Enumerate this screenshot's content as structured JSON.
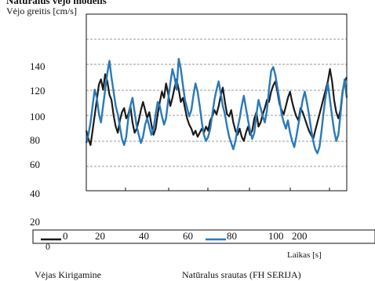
{
  "chart_data": {
    "type": "line",
    "title": "Natūralūs vėjo modelis",
    "ylabel": "Vėjo greitis [cm/s]",
    "xlabel": "Laikas [s]",
    "ylim": [
      20,
      160
    ],
    "y_ticks": [
      20,
      40,
      60,
      80,
      100,
      120,
      140
    ],
    "x_tick_labels": [
      "0",
      "20",
      "40",
      "60",
      "80",
      "100",
      "200"
    ],
    "extra_label": "0",
    "grid": "horizontal-dashed",
    "legend_position": "bottom",
    "legend": [
      "Vėjas Kirigamine",
      "Natūralus srautas (FH SERIJA)"
    ],
    "series": [
      {
        "name": "Vėjas Kirigamine",
        "color": "#1a1a1a",
        "values": [
          80,
          72,
          66,
          80,
          95,
          110,
          125,
          130,
          120,
          135,
          128,
          115,
          110,
          95,
          84,
          78,
          90,
          98,
          102,
          92,
          96,
          104,
          88,
          78,
          82,
          90,
          100,
          108,
          100,
          92,
          98,
          86,
          76,
          82,
          96,
          108,
          118,
          112,
          126,
          116,
          104,
          112,
          122,
          130,
          120,
          108,
          112,
          102,
          92,
          86,
          82,
          76,
          80,
          74,
          78,
          82,
          78,
          84,
          80,
          90,
          94,
          100,
          96,
          104,
          114,
          122,
          108,
          96,
          94,
          100,
          88,
          80,
          76,
          82,
          74,
          70,
          78,
          84,
          76,
          80,
          92,
          98,
          84,
          88,
          96,
          102,
          110,
          108,
          118,
          124,
          128,
          118,
          106,
          100,
          96,
          104,
          112,
          118,
          108,
          100,
          94,
          90,
          102,
          98,
          92,
          86,
          80,
          76,
          72,
          80,
          88,
          96,
          104,
          112,
          120,
          128,
          140,
          128,
          110,
          98,
          92,
          100,
          118,
          128,
          132
        ]
      },
      {
        "name": "Natūralus srautas (FH SERIJA)",
        "color": "#2a7ab8",
        "values": [
          68,
          76,
          88,
          104,
          120,
          112,
          96,
          88,
          104,
          120,
          136,
          148,
          132,
          118,
          104,
          96,
          84,
          72,
          66,
          74,
          92,
          104,
          112,
          98,
          84,
          76,
          68,
          74,
          86,
          92,
          84,
          76,
          82,
          96,
          108,
          104,
          94,
          86,
          92,
          110,
          126,
          140,
          132,
          120,
          150,
          140,
          124,
          110,
          102,
          94,
          100,
          114,
          126,
          118,
          104,
          88,
          76,
          70,
          74,
          82,
          96,
          110,
          120,
          128,
          116,
          104,
          96,
          84,
          74,
          68,
          62,
          70,
          82,
          92,
          104,
          114,
          102,
          90,
          80,
          72,
          78,
          96,
          110,
          102,
          94,
          88,
          100,
          120,
          138,
          142,
          134,
          122,
          110,
          96,
          88,
          82,
          90,
          78,
          70,
          64,
          74,
          86,
          98,
          110,
          118,
          108,
          96,
          82,
          70,
          62,
          58,
          64,
          80,
          98,
          114,
          126,
          110,
          94,
          80,
          70,
          76,
          96,
          116,
          130,
          112
        ]
      }
    ]
  }
}
